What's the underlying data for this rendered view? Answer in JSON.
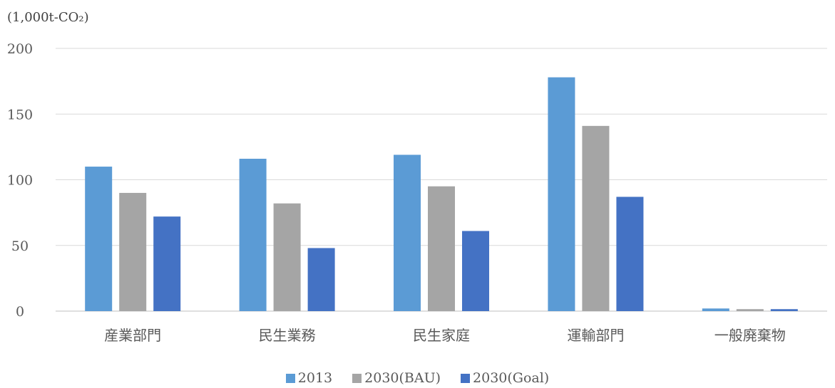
{
  "chart_data": {
    "type": "bar",
    "unit_label": "(1,000t-CO₂)",
    "categories": [
      "産業部門",
      "民生業務",
      "民生家庭",
      "運輸部門",
      "一般廃棄物"
    ],
    "series": [
      {
        "name": "2013",
        "color": "#5b9bd5",
        "values": [
          110,
          116,
          119,
          178,
          2
        ]
      },
      {
        "name": "2030(BAU)",
        "color": "#a5a5a5",
        "values": [
          90,
          82,
          95,
          141,
          1.5
        ]
      },
      {
        "name": "2030(Goal)",
        "color": "#4472c4",
        "values": [
          72,
          48,
          61,
          87,
          1.5
        ]
      }
    ],
    "ylim": [
      0,
      200
    ],
    "yticks": [
      0,
      50,
      100,
      150,
      200
    ],
    "grid": true,
    "legend_position": "bottom"
  }
}
